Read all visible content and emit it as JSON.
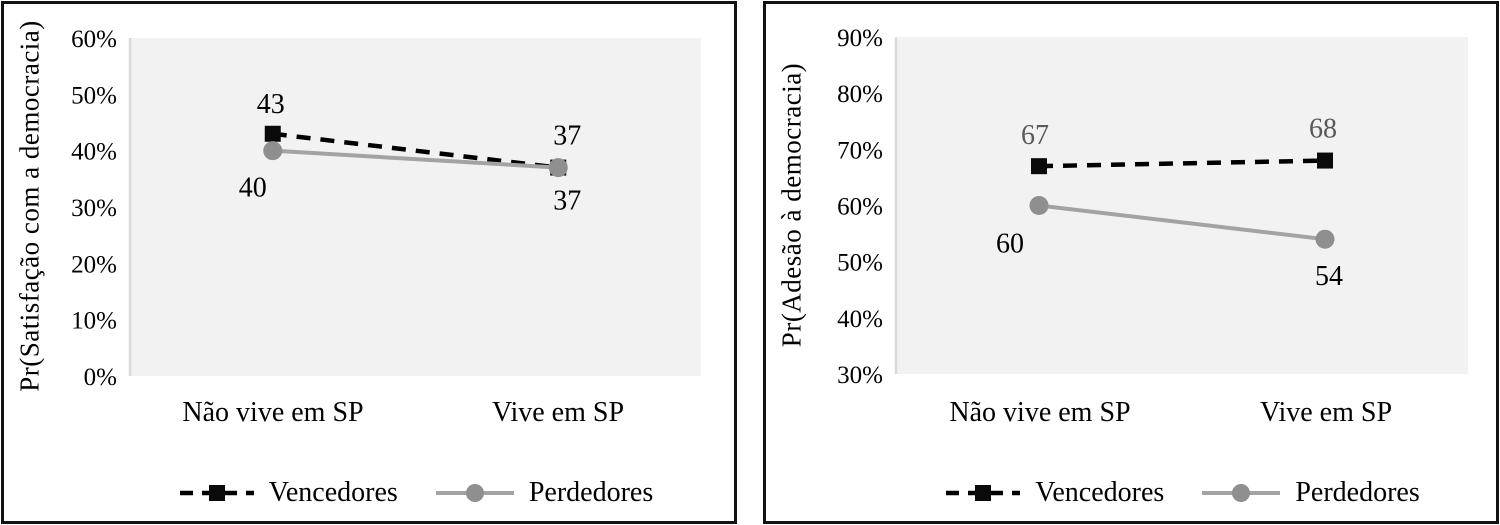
{
  "figure": {
    "panel_count": 2,
    "background": "#ffffff",
    "border_color": "#121212"
  },
  "colors": {
    "plot_bg": "#f2f2f2",
    "axis_line": "#d9d9d9",
    "vencedores_line": "#000000",
    "vencedores_marker": "#0a0a0a",
    "perdedores_line": "#a3a3a3",
    "perdedores_marker": "#8f8f8f",
    "gray_label": "#595959",
    "black_label": "#000000"
  },
  "chart_data": [
    {
      "type": "line",
      "title": "",
      "xlabel": "",
      "ylabel": "Pr(Satisfação com a democracia)",
      "categories": [
        "Não vive em SP",
        "Vive em SP"
      ],
      "yticks": [
        "0%",
        "10%",
        "20%",
        "30%",
        "40%",
        "50%",
        "60%"
      ],
      "ylim": [
        0,
        60
      ],
      "ytick_step": 10,
      "grid": false,
      "legend_position": "bottom",
      "plot_bg": "#f2f2f2",
      "axis_color": "#d9d9d9",
      "series": [
        {
          "name": "Vencedores",
          "values": [
            43,
            37
          ],
          "labels": [
            "43",
            "37"
          ],
          "label_placement": [
            "above",
            "above"
          ],
          "label_color": "#000000",
          "line_style": "dashed",
          "color": "#000000",
          "marker": "square",
          "marker_color": "#0a0a0a"
        },
        {
          "name": "Perdedores",
          "values": [
            40,
            37
          ],
          "labels": [
            "40",
            "37"
          ],
          "label_placement": [
            "below",
            "below"
          ],
          "label_color": "#000000",
          "line_style": "solid",
          "color": "#a3a3a3",
          "marker": "circle",
          "marker_color": "#8f8f8f"
        }
      ]
    },
    {
      "type": "line",
      "title": "",
      "xlabel": "",
      "ylabel": "Pr(Adesão à democracia)",
      "categories": [
        "Não vive em SP",
        "Vive em SP"
      ],
      "yticks": [
        "30%",
        "40%",
        "50%",
        "60%",
        "70%",
        "80%",
        "90%"
      ],
      "ylim": [
        30,
        90
      ],
      "ytick_step": 10,
      "grid": false,
      "legend_position": "bottom",
      "plot_bg": "#f2f2f2",
      "axis_color": "#d9d9d9",
      "series": [
        {
          "name": "Vencedores",
          "values": [
            67,
            68
          ],
          "labels": [
            "67",
            "68"
          ],
          "label_placement": [
            "above",
            "above"
          ],
          "label_color": "#595959",
          "line_style": "dashed",
          "color": "#000000",
          "marker": "square",
          "marker_color": "#0a0a0a"
        },
        {
          "name": "Perdedores",
          "values": [
            60,
            54
          ],
          "labels": [
            "60",
            "54"
          ],
          "label_placement": [
            "below",
            "below"
          ],
          "label_color": "#000000",
          "line_style": "solid",
          "color": "#a3a3a3",
          "marker": "circle",
          "marker_color": "#8f8f8f"
        }
      ]
    }
  ]
}
